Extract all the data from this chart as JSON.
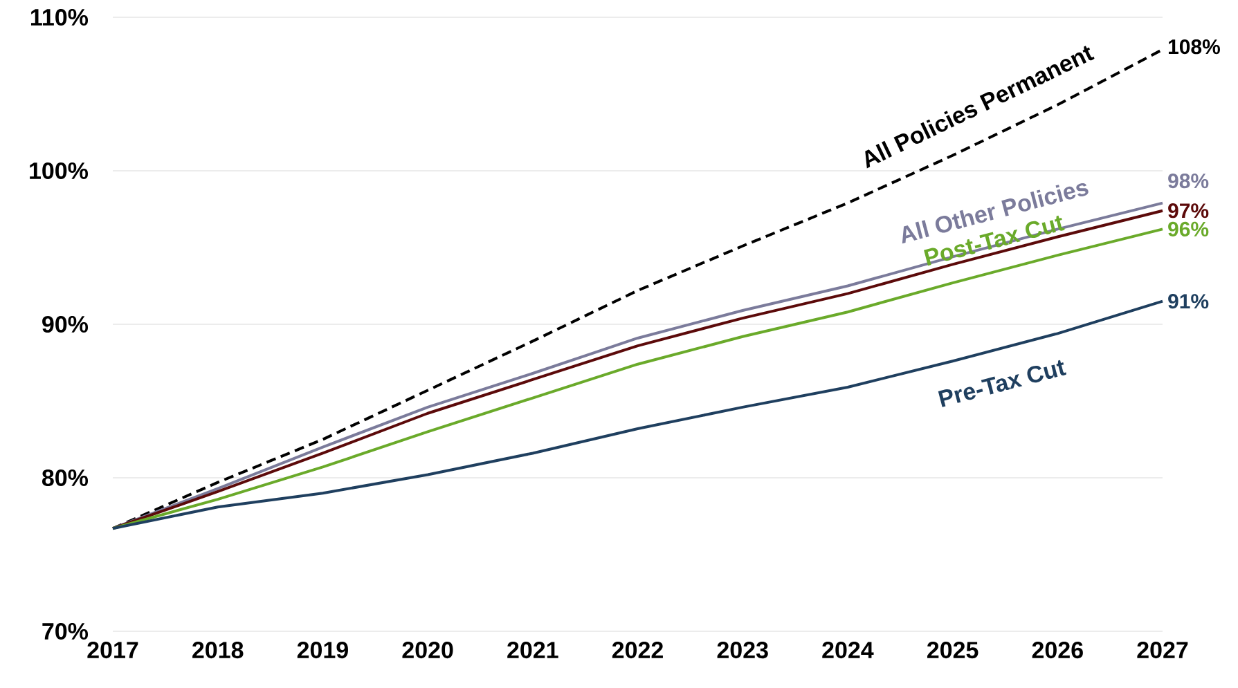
{
  "chart_data": {
    "type": "line",
    "x": [
      2017,
      2018,
      2019,
      2020,
      2021,
      2022,
      2023,
      2024,
      2025,
      2026,
      2027
    ],
    "series": [
      {
        "name": "All Policies Permanent",
        "color": "#000000",
        "line_style": "dashed",
        "values": [
          76.7,
          79.7,
          82.5,
          85.7,
          88.9,
          92.2,
          95.1,
          97.9,
          101.0,
          104.3,
          107.9
        ],
        "value_labels": [
          null,
          null,
          null,
          null,
          null,
          null,
          null,
          null,
          null,
          null,
          "108%"
        ]
      },
      {
        "name": "All Other Policies",
        "color": "#7b7b9b",
        "line_style": "solid",
        "values": [
          76.7,
          79.3,
          82.0,
          84.6,
          86.8,
          89.1,
          90.9,
          92.5,
          94.4,
          96.2,
          97.9
        ],
        "value_labels": [
          null,
          null,
          null,
          null,
          null,
          null,
          null,
          null,
          null,
          null,
          "98%"
        ]
      },
      {
        "color": "#5c0a0a",
        "line_style": "solid",
        "values": [
          76.7,
          79.1,
          81.6,
          84.2,
          86.4,
          88.6,
          90.4,
          92.0,
          93.9,
          95.7,
          97.4
        ],
        "value_labels": [
          null,
          null,
          null,
          null,
          null,
          null,
          null,
          null,
          null,
          null,
          "97%"
        ]
      },
      {
        "name": "Post-Tax Cut",
        "color": "#6aaa2a",
        "line_style": "solid",
        "values": [
          76.7,
          78.6,
          80.7,
          83.0,
          85.2,
          87.4,
          89.2,
          90.8,
          92.7,
          94.5,
          96.2
        ],
        "value_labels": [
          null,
          null,
          null,
          null,
          null,
          null,
          null,
          null,
          null,
          null,
          "96%"
        ]
      },
      {
        "name": "Pre-Tax Cut",
        "color": "#1f3f5f",
        "line_style": "solid",
        "values": [
          76.7,
          78.1,
          79.0,
          80.2,
          81.6,
          83.2,
          84.6,
          85.9,
          87.6,
          89.4,
          91.5
        ],
        "value_labels": [
          null,
          null,
          null,
          null,
          null,
          null,
          null,
          null,
          null,
          null,
          "91%"
        ]
      }
    ],
    "xlim": [
      2017,
      2027
    ],
    "xticks": [
      2017,
      2018,
      2019,
      2020,
      2021,
      2022,
      2023,
      2024,
      2025,
      2026,
      2027
    ],
    "ylim": [
      70,
      110
    ],
    "yticks": [
      {
        "value": 70,
        "label": "70%"
      },
      {
        "value": 80,
        "label": "80%"
      },
      {
        "value": 90,
        "label": "90%"
      },
      {
        "value": 100,
        "label": "100%"
      },
      {
        "value": 110,
        "label": "110%"
      }
    ],
    "grid": "y",
    "marker": "none"
  }
}
